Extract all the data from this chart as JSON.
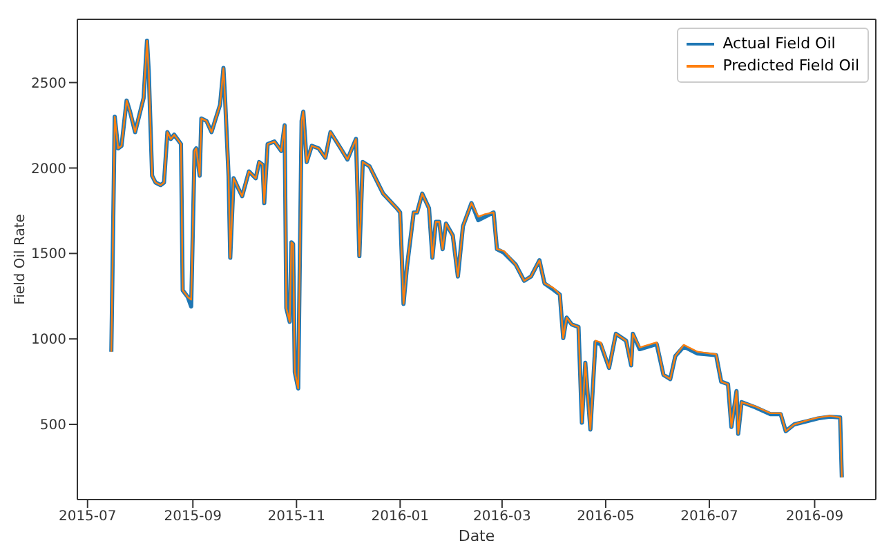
{
  "chart_data": {
    "type": "line",
    "xlabel": "Date",
    "ylabel": "Field Oil Rate",
    "x": [
      "2015-07-15",
      "2015-07-17",
      "2015-07-19",
      "2015-07-21",
      "2015-07-24",
      "2015-07-26",
      "2015-07-29",
      "2015-08-01",
      "2015-08-03",
      "2015-08-05",
      "2015-08-06",
      "2015-08-08",
      "2015-08-10",
      "2015-08-13",
      "2015-08-15",
      "2015-08-17",
      "2015-08-19",
      "2015-08-21",
      "2015-08-25",
      "2015-08-26",
      "2015-08-29",
      "2015-08-31",
      "2015-09-02",
      "2015-09-03",
      "2015-09-05",
      "2015-09-06",
      "2015-09-09",
      "2015-09-12",
      "2015-09-14",
      "2015-09-17",
      "2015-09-19",
      "2015-09-20",
      "2015-09-22",
      "2015-09-23",
      "2015-09-25",
      "2015-09-28",
      "2015-09-30",
      "2015-10-04",
      "2015-10-08",
      "2015-10-10",
      "2015-10-12",
      "2015-10-13",
      "2015-10-15",
      "2015-10-19",
      "2015-10-23",
      "2015-10-25",
      "2015-10-26",
      "2015-10-28",
      "2015-10-29",
      "2015-10-30",
      "2015-10-31",
      "2015-11-02",
      "2015-11-04",
      "2015-11-05",
      "2015-11-07",
      "2015-11-10",
      "2015-11-14",
      "2015-11-18",
      "2015-11-21",
      "2015-11-27",
      "2015-12-01",
      "2015-12-06",
      "2015-12-08",
      "2015-12-10",
      "2015-12-14",
      "2015-12-22",
      "2015-12-30",
      "2016-01-01",
      "2016-01-03",
      "2016-01-05",
      "2016-01-09",
      "2016-01-11",
      "2016-01-14",
      "2016-01-18",
      "2016-01-20",
      "2016-01-22",
      "2016-01-24",
      "2016-01-26",
      "2016-01-28",
      "2016-02-01",
      "2016-02-04",
      "2016-02-07",
      "2016-02-12",
      "2016-02-16",
      "2016-02-20",
      "2016-02-25",
      "2016-02-27",
      "2016-03-02",
      "2016-03-09",
      "2016-03-14",
      "2016-03-18",
      "2016-03-23",
      "2016-03-26",
      "2016-03-31",
      "2016-04-04",
      "2016-04-06",
      "2016-04-08",
      "2016-04-11",
      "2016-04-15",
      "2016-04-17",
      "2016-04-19",
      "2016-04-22",
      "2016-04-25",
      "2016-04-28",
      "2016-05-03",
      "2016-05-07",
      "2016-05-13",
      "2016-05-16",
      "2016-05-17",
      "2016-05-21",
      "2016-05-31",
      "2016-06-04",
      "2016-06-08",
      "2016-06-11",
      "2016-06-16",
      "2016-06-24",
      "2016-07-05",
      "2016-07-08",
      "2016-07-12",
      "2016-07-14",
      "2016-07-17",
      "2016-07-18",
      "2016-07-20",
      "2016-07-28",
      "2016-08-06",
      "2016-08-12",
      "2016-08-15",
      "2016-08-20",
      "2016-08-28",
      "2016-09-03",
      "2016-09-10",
      "2016-09-16",
      "2016-09-17"
    ],
    "series": [
      {
        "name": "Actual Field Oil",
        "color": "#1f77b4",
        "values": [
          925,
          2300,
          2115,
          2130,
          2395,
          2330,
          2210,
          2330,
          2410,
          2745,
          2570,
          1955,
          1915,
          1900,
          1915,
          2210,
          2170,
          2195,
          2140,
          1285,
          1245,
          1190,
          2100,
          2115,
          1955,
          2290,
          2275,
          2210,
          2275,
          2370,
          2585,
          2395,
          1955,
          1475,
          1940,
          1875,
          1835,
          1980,
          1940,
          2035,
          2020,
          1795,
          2140,
          2155,
          2100,
          2250,
          1180,
          1100,
          1565,
          1555,
          805,
          710,
          2275,
          2330,
          2035,
          2130,
          2115,
          2060,
          2210,
          2115,
          2050,
          2170,
          1485,
          2035,
          2010,
          1850,
          1765,
          1740,
          1205,
          1420,
          1740,
          1740,
          1850,
          1765,
          1475,
          1685,
          1685,
          1525,
          1675,
          1605,
          1365,
          1660,
          1795,
          1695,
          1715,
          1740,
          1525,
          1505,
          1435,
          1340,
          1365,
          1460,
          1325,
          1290,
          1260,
          1005,
          1125,
          1085,
          1070,
          510,
          860,
          470,
          980,
          970,
          830,
          1030,
          990,
          845,
          1030,
          940,
          970,
          790,
          765,
          900,
          955,
          915,
          905,
          750,
          735,
          485,
          695,
          445,
          630,
          600,
          560,
          560,
          460,
          500,
          520,
          535,
          545,
          540,
          190
        ]
      },
      {
        "name": "Predicted Field Oil",
        "color": "#ff7f0e",
        "values": [
          925,
          2300,
          2115,
          2130,
          2395,
          2330,
          2210,
          2330,
          2410,
          2745,
          2570,
          1955,
          1915,
          1900,
          1915,
          2210,
          2170,
          2195,
          2140,
          1285,
          1245,
          1230,
          2100,
          2115,
          1955,
          2290,
          2275,
          2210,
          2275,
          2370,
          2585,
          2395,
          1955,
          1475,
          1940,
          1875,
          1835,
          1980,
          1940,
          2035,
          2020,
          1795,
          2140,
          2155,
          2100,
          2250,
          1180,
          1100,
          1565,
          1555,
          805,
          710,
          2275,
          2330,
          2035,
          2130,
          2115,
          2060,
          2210,
          2115,
          2050,
          2170,
          1485,
          2035,
          2010,
          1850,
          1765,
          1740,
          1205,
          1420,
          1740,
          1740,
          1850,
          1765,
          1475,
          1685,
          1685,
          1525,
          1675,
          1605,
          1365,
          1660,
          1795,
          1715,
          1730,
          1740,
          1525,
          1515,
          1435,
          1340,
          1365,
          1460,
          1325,
          1300,
          1260,
          1005,
          1125,
          1085,
          1070,
          510,
          860,
          470,
          990,
          980,
          830,
          1030,
          990,
          845,
          1030,
          950,
          980,
          790,
          765,
          900,
          965,
          925,
          910,
          750,
          735,
          485,
          695,
          445,
          630,
          605,
          565,
          565,
          460,
          500,
          525,
          540,
          550,
          540,
          190
        ]
      }
    ],
    "xlim": [
      "2015-06-25",
      "2016-10-07"
    ],
    "xticks": [
      "2015-07",
      "2015-09",
      "2015-11",
      "2016-01",
      "2016-03",
      "2016-05",
      "2016-07",
      "2016-09"
    ],
    "ylim": [
      60,
      2870
    ],
    "yticks": [
      500,
      1000,
      1500,
      2000,
      2500
    ],
    "legend": "top right",
    "grid": false
  }
}
